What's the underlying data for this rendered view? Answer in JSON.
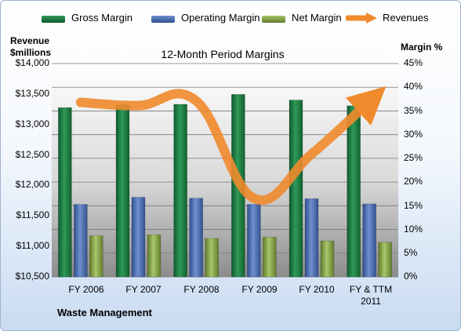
{
  "chart_data": {
    "type": "bar",
    "title": "12-Month Period Margins",
    "ylabel_left": "Revenue $millions",
    "ylabel_right": "Margin %",
    "categories": [
      "FY 2006",
      "FY 2007",
      "FY 2008",
      "FY 2009",
      "FY 2010",
      "FY & TTM 2011"
    ],
    "ylim_left": [
      10500,
      14000
    ],
    "ylim_right": [
      0,
      45
    ],
    "left_ticks": [
      "$10,500",
      "$11,000",
      "$11,500",
      "$12,000",
      "$12,500",
      "$13,000",
      "$13,500",
      "$14,000"
    ],
    "right_ticks": [
      "0%",
      "5%",
      "10%",
      "15%",
      "20%",
      "25%",
      "30%",
      "35%",
      "40%",
      "45%"
    ],
    "grid": true,
    "legend_position": "top",
    "series": [
      {
        "name": "Gross Margin",
        "type": "bar",
        "axis": "right",
        "color": "#1f7a45",
        "values": [
          35.7,
          36.3,
          36.4,
          38.5,
          37.3,
          36.1
        ]
      },
      {
        "name": "Operating Margin",
        "type": "bar",
        "axis": "right",
        "color": "#4a6faf",
        "values": [
          15.3,
          16.8,
          16.6,
          15.3,
          16.5,
          15.4
        ]
      },
      {
        "name": "Net Margin",
        "type": "bar",
        "axis": "right",
        "color": "#8aa84a",
        "values": [
          8.7,
          8.9,
          8.1,
          8.4,
          7.6,
          7.3
        ]
      },
      {
        "name": "Revenues",
        "type": "line",
        "axis": "left",
        "color": "#f08a2c",
        "values": [
          13363,
          13310,
          13388,
          11791,
          12515,
          13378
        ]
      }
    ],
    "company": "Waste Management"
  }
}
